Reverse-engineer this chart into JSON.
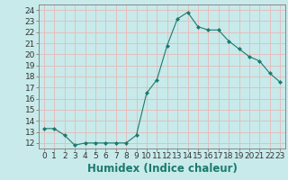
{
  "x": [
    0,
    1,
    2,
    3,
    4,
    5,
    6,
    7,
    8,
    9,
    10,
    11,
    12,
    13,
    14,
    15,
    16,
    17,
    18,
    19,
    20,
    21,
    22,
    23
  ],
  "y": [
    13.3,
    13.3,
    12.7,
    11.8,
    12.0,
    12.0,
    12.0,
    12.0,
    12.0,
    12.7,
    16.5,
    17.7,
    20.8,
    23.2,
    23.8,
    22.5,
    22.2,
    22.2,
    21.2,
    20.5,
    19.8,
    19.4,
    18.3,
    17.5
  ],
  "xlabel": "Humidex (Indice chaleur)",
  "ylabel": "",
  "line_color": "#1a7a6e",
  "marker": "D",
  "marker_size": 2.0,
  "bg_color": "#c8eaea",
  "grid_color": "#e8b8b8",
  "xlim": [
    -0.5,
    23.5
  ],
  "ylim": [
    11.5,
    24.5
  ],
  "yticks": [
    12,
    13,
    14,
    15,
    16,
    17,
    18,
    19,
    20,
    21,
    22,
    23,
    24
  ],
  "xticks": [
    0,
    1,
    2,
    3,
    4,
    5,
    6,
    7,
    8,
    9,
    10,
    11,
    12,
    13,
    14,
    15,
    16,
    17,
    18,
    19,
    20,
    21,
    22,
    23
  ],
  "tick_fontsize": 6.5,
  "xlabel_fontsize": 8.5
}
